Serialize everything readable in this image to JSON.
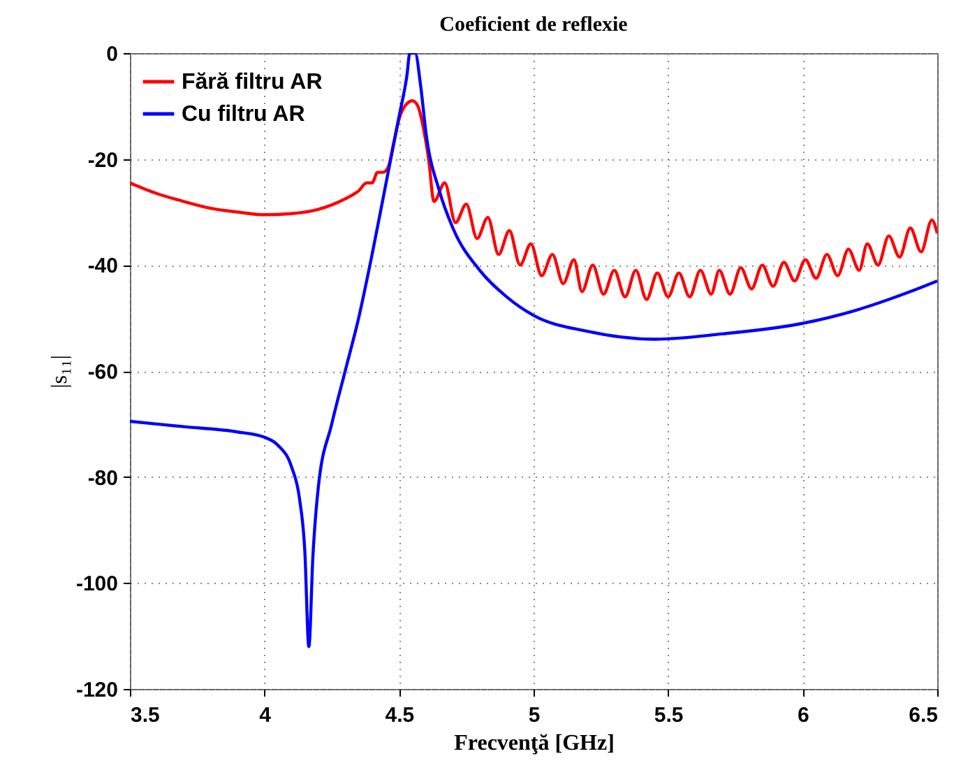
{
  "chart_data": {
    "type": "line",
    "title": "Coeficient de reflexie",
    "xlabel": "Frecvenţă [GHz]",
    "ylabel": "|s₁₁|",
    "xlim": [
      3.5,
      6.5
    ],
    "xticks": [
      3.5,
      4,
      4.5,
      5,
      5.5,
      6,
      6.5
    ],
    "ylim": [
      -120,
      0
    ],
    "yticks": [
      -120,
      -100,
      -80,
      -60,
      -40,
      -20,
      0
    ],
    "grid": true,
    "legend": "top left",
    "marker": "none",
    "line_style": "solid",
    "series": [
      {
        "name": "Fără filtru AR",
        "color": "#ff0000",
        "x": [
          3.5,
          3.6,
          3.7,
          3.8,
          3.9,
          4.0,
          4.1,
          4.2,
          4.3,
          4.35,
          4.38,
          4.4,
          4.42,
          4.44,
          4.46,
          4.48,
          4.5,
          4.53,
          4.55,
          4.57,
          4.59,
          4.61,
          4.63,
          4.67,
          4.71,
          4.75,
          4.79,
          4.83,
          4.87,
          4.91,
          4.95,
          4.99,
          5.03,
          5.07,
          5.11,
          5.15,
          5.18,
          5.22,
          5.26,
          5.3,
          5.34,
          5.38,
          5.42,
          5.46,
          5.5,
          5.54,
          5.58,
          5.62,
          5.66,
          5.69,
          5.73,
          5.77,
          5.81,
          5.85,
          5.89,
          5.93,
          5.97,
          6.01,
          6.05,
          6.09,
          6.13,
          6.17,
          6.21,
          6.24,
          6.28,
          6.32,
          6.36,
          6.4,
          6.44,
          6.48,
          6.5
        ],
        "values": [
          -24.5,
          -26.5,
          -28,
          -29.3,
          -30,
          -30.5,
          -30.3,
          -29.5,
          -27.5,
          -26,
          -24.5,
          -24.5,
          -22.5,
          -22.5,
          -21.5,
          -17,
          -12.5,
          -9.5,
          -9,
          -10,
          -14,
          -20,
          -28,
          -24.5,
          -32,
          -28.5,
          -35,
          -31,
          -38,
          -33.5,
          -40,
          -36,
          -42,
          -38,
          -43.5,
          -39,
          -45,
          -40,
          -45.5,
          -41,
          -46,
          -41,
          -46.5,
          -41.5,
          -46,
          -41.5,
          -46,
          -41,
          -45.5,
          -41,
          -45.5,
          -40.5,
          -44.5,
          -40,
          -44,
          -39.5,
          -43,
          -39,
          -42.5,
          -38,
          -42,
          -37,
          -41,
          -36,
          -40,
          -34.5,
          -38.5,
          -33,
          -37.5,
          -31.5,
          -34
        ]
      },
      {
        "name": "Cu filtru AR",
        "color": "#0000ff",
        "x": [
          3.5,
          3.7,
          3.9,
          4.0,
          4.05,
          4.1,
          4.13,
          4.15,
          4.165,
          4.18,
          4.2,
          4.25,
          4.3,
          4.35,
          4.4,
          4.45,
          4.5,
          4.53,
          4.54,
          4.56,
          4.58,
          4.6,
          4.65,
          4.7,
          4.8,
          4.9,
          5.0,
          5.2,
          5.45,
          5.7,
          6.0,
          6.2,
          6.4,
          6.5
        ],
        "values": [
          -69.5,
          -70.5,
          -71.5,
          -72.5,
          -74,
          -78,
          -84,
          -94,
          -112,
          -95,
          -82,
          -70,
          -60,
          -50,
          -38,
          -25,
          -12,
          -4,
          0,
          0,
          -6,
          -15,
          -26,
          -33,
          -41,
          -46,
          -49.5,
          -52.5,
          -54,
          -53,
          -51,
          -48.5,
          -45,
          -43
        ]
      }
    ]
  }
}
